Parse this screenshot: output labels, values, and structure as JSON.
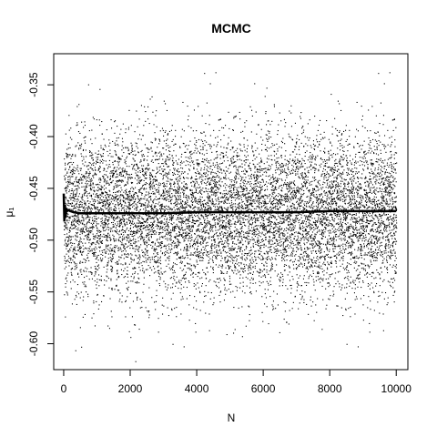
{
  "chart_data": {
    "type": "scatter",
    "title": "MCMC",
    "xlabel": "N",
    "ylabel": "μ₁",
    "xlim": [
      -300,
      10350
    ],
    "ylim": [
      -0.625,
      -0.32
    ],
    "xticks": [
      0,
      2000,
      4000,
      6000,
      8000,
      10000
    ],
    "xtick_labels": [
      "0",
      "2000",
      "4000",
      "6000",
      "8000",
      "10000"
    ],
    "yticks": [
      -0.6,
      -0.55,
      -0.5,
      -0.45,
      -0.4,
      -0.35
    ],
    "ytick_labels": [
      "-0.60",
      "-0.55",
      "-0.50",
      "-0.45",
      "-0.40",
      "-0.35"
    ],
    "grid": false,
    "series": [
      {
        "kind": "samples",
        "n": 10000,
        "mean": -0.474,
        "sd": 0.038,
        "color": "#000000"
      },
      {
        "kind": "running-mean",
        "x": [
          0,
          20,
          40,
          60,
          80,
          100,
          150,
          200,
          300,
          500,
          1000,
          2000,
          3000,
          4000,
          5000,
          6000,
          7000,
          8000,
          9000,
          10000
        ],
        "y": [
          -0.455,
          -0.482,
          -0.466,
          -0.478,
          -0.469,
          -0.472,
          -0.471,
          -0.472,
          -0.473,
          -0.474,
          -0.474,
          -0.474,
          -0.474,
          -0.473,
          -0.473,
          -0.473,
          -0.473,
          -0.472,
          -0.472,
          -0.472
        ],
        "color": "#000000"
      }
    ]
  }
}
